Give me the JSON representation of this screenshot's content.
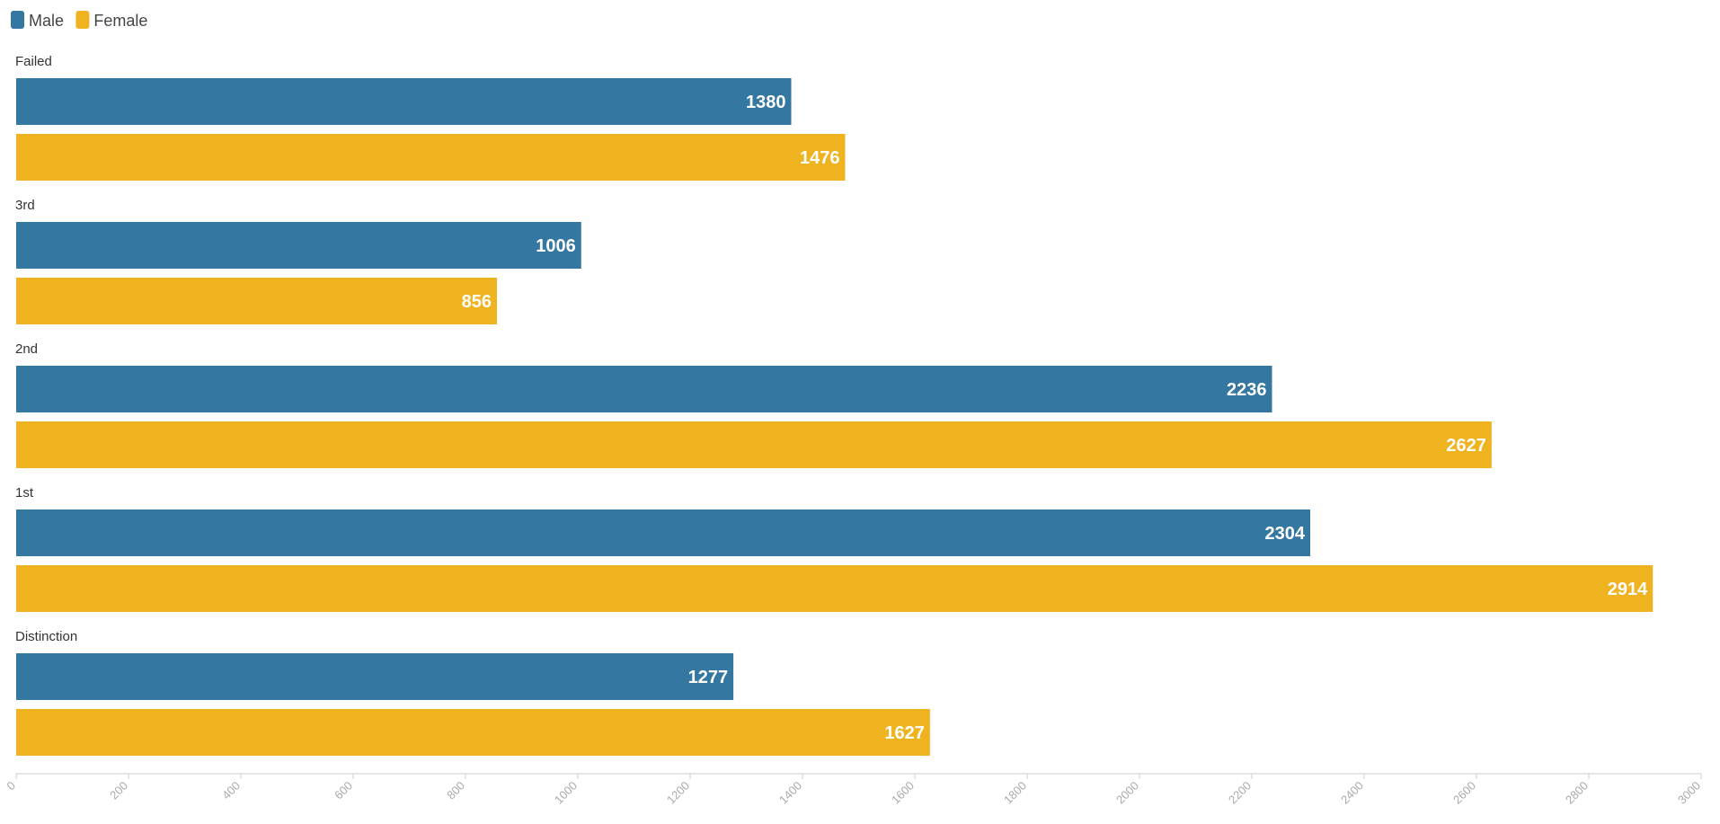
{
  "chart_data": {
    "type": "bar",
    "orientation": "horizontal",
    "categories": [
      "Failed",
      "3rd",
      "2nd",
      "1st",
      "Distinction"
    ],
    "series": [
      {
        "name": "Male",
        "color": "#3477a0",
        "values": [
          1380,
          1006,
          2236,
          2304,
          1277
        ]
      },
      {
        "name": "Female",
        "color": "#efb320",
        "values": [
          1476,
          856,
          2627,
          2914,
          1627
        ]
      }
    ],
    "xlim": [
      0,
      3000
    ],
    "x_ticks": [
      "0",
      "200",
      "400",
      "600",
      "800",
      "1000",
      "1200",
      "1400",
      "1600",
      "1800",
      "2000",
      "2200",
      "2400",
      "2600",
      "2800",
      "3000"
    ],
    "legend_position": "top-left",
    "data_labels": true,
    "grid": false
  }
}
